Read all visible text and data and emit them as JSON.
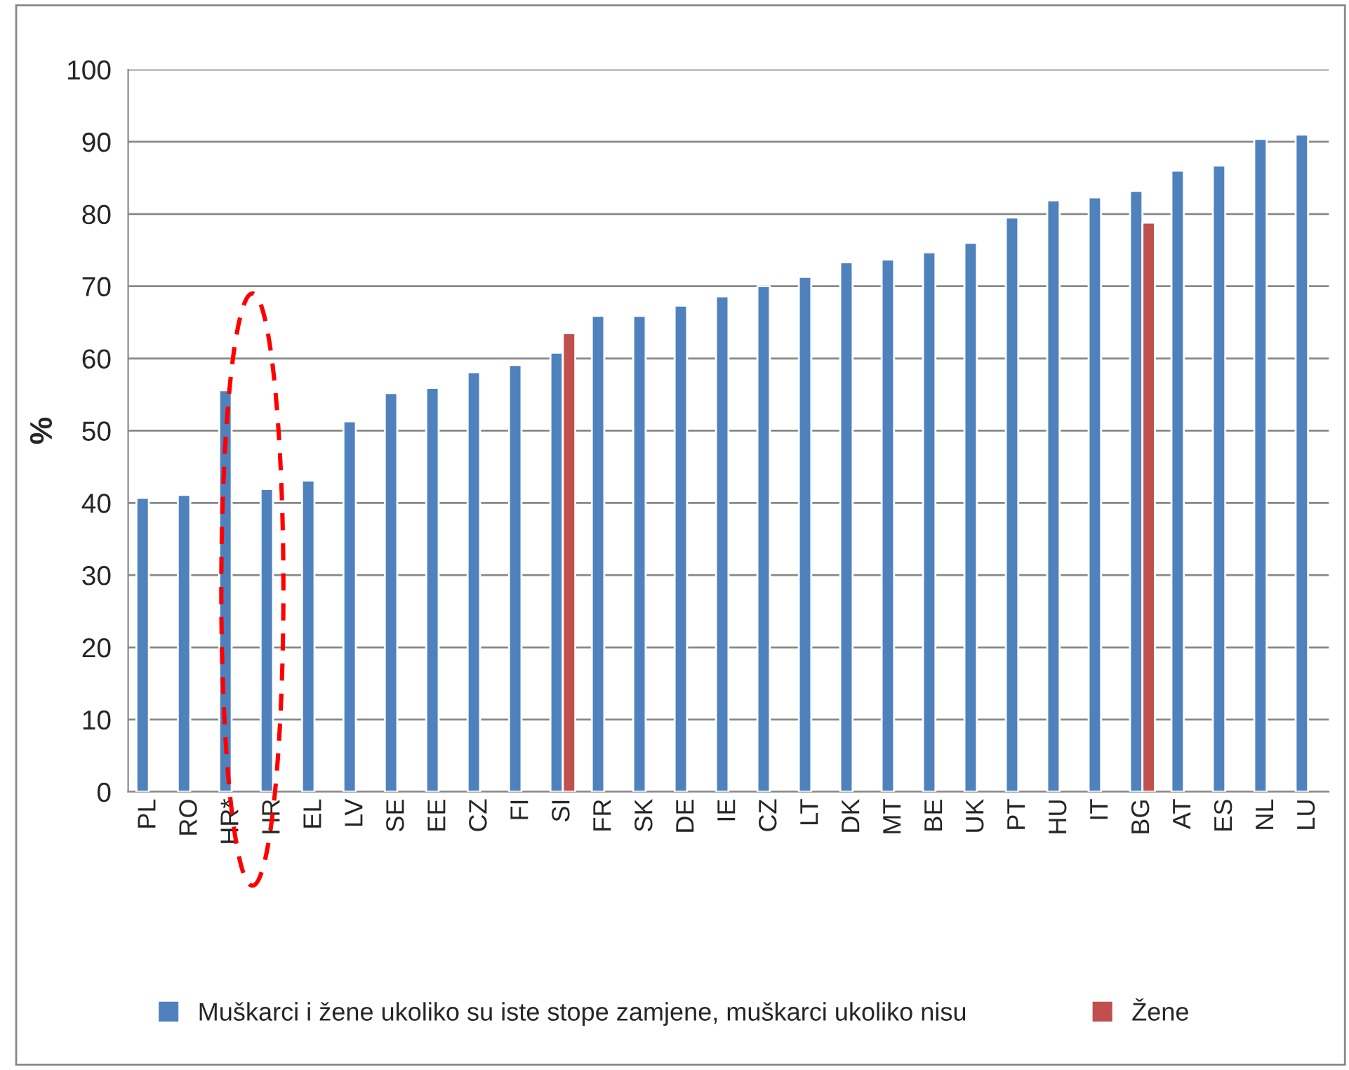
{
  "chart_data": {
    "type": "bar",
    "ylabel": "%",
    "categories": [
      "PL",
      "RO",
      "HR*",
      "HR",
      "EL",
      "LV",
      "SE",
      "EE",
      "CZ",
      "FI",
      "SI",
      "FR",
      "SK",
      "DE",
      "IE",
      "CZ",
      "LT",
      "DK",
      "MT",
      "BE",
      "UK",
      "PT",
      "HU",
      "IT",
      "BG",
      "AT",
      "ES",
      "NL",
      "LU"
    ],
    "series": [
      {
        "name": "Muškarci i žene ukoliko su iste stope zamjene, muškarci ukoliko nisu",
        "color": "#4f81bd",
        "values": [
          40.7,
          41.1,
          55.6,
          41.9,
          43.1,
          51.3,
          55.2,
          55.9,
          58.1,
          59.1,
          60.8,
          65.9,
          65.9,
          67.3,
          68.6,
          70.0,
          71.3,
          73.3,
          73.7,
          74.7,
          76.0,
          79.5,
          81.9,
          82.3,
          83.2,
          86.0,
          86.7,
          90.4,
          91.0
        ]
      },
      {
        "name": "Žene",
        "color": "#c0504d",
        "values": [
          null,
          null,
          null,
          null,
          null,
          null,
          null,
          null,
          null,
          null,
          63.5,
          null,
          null,
          null,
          null,
          null,
          null,
          null,
          null,
          null,
          null,
          null,
          null,
          null,
          78.8,
          null,
          null,
          null,
          null
        ]
      }
    ],
    "ylim": [
      0,
      100
    ],
    "yticks": [
      0,
      10,
      20,
      30,
      40,
      50,
      60,
      70,
      80,
      90,
      100
    ],
    "grid": "y",
    "legend": "bottom"
  }
}
